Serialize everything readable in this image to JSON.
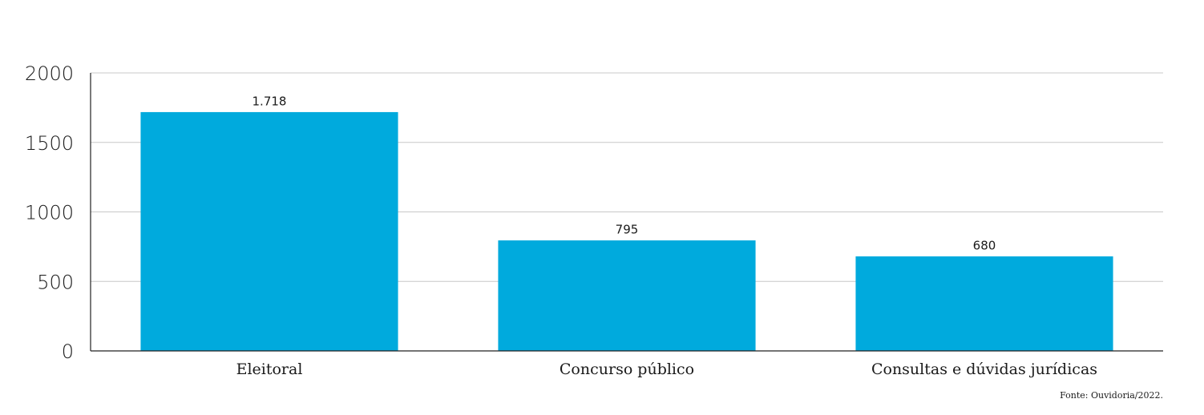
{
  "chart_data": {
    "type": "bar",
    "categories": [
      "Eleitoral",
      "Concurso público",
      "Consultas e dúvidas jurídicas"
    ],
    "values": [
      1718,
      795,
      680
    ],
    "value_labels": [
      "1.718",
      "795",
      "680"
    ],
    "color": "#00aadd",
    "ylim": [
      0,
      2000
    ],
    "yticks": [
      0,
      500,
      1000,
      1500,
      2000
    ],
    "grid": true,
    "source": "Fonte: Ouvidoria/2022."
  }
}
